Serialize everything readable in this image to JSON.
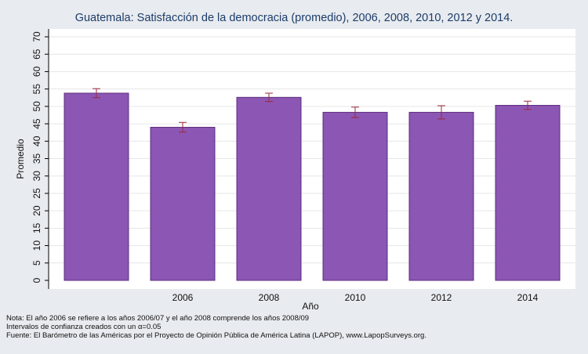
{
  "title": "Guatemala: Satisfacción de la democracia (promedio), 2006, 2008, 2010, 2012 y 2014.",
  "notes": {
    "line1": "Nota: El año 2006 se refiere a los años 2006/07 y el año 2008 comprende los años 2008/09",
    "line2": "Intervalos de confianza creados con un α=0.05",
    "line3": "Fuente: El Barómetro de las Américas por el Proyecto de Opinión Pública de América Latina (LAPOP), www.LapopSurveys.org."
  },
  "chart_data": {
    "type": "bar",
    "title": "Guatemala: Satisfacción de la democracia (promedio), 2006, 2008, 2010, 2012 y 2014.",
    "xlabel": "Año",
    "ylabel": "Promedio",
    "ylim": [
      0,
      70
    ],
    "yticks": [
      0,
      5,
      10,
      15,
      20,
      25,
      30,
      35,
      40,
      45,
      50,
      55,
      60,
      65,
      70
    ],
    "grid": true,
    "categories": [
      "",
      "2006",
      "2008",
      "2010",
      "2012",
      "2014"
    ],
    "values": [
      53.8,
      44.0,
      52.6,
      48.3,
      48.3,
      50.3
    ],
    "ci_low": [
      52.5,
      42.6,
      51.4,
      46.8,
      46.4,
      49.1
    ],
    "ci_high": [
      55.1,
      45.4,
      53.8,
      49.8,
      50.2,
      51.5
    ],
    "colors": {
      "bar_fill": "#8c56b4",
      "bar_stroke": "#5c2c7c",
      "error_bar": "#9a2a3a",
      "plot_bg": "#ffffff",
      "page_bg": "#e8ebef",
      "grid": "#e6e6e6"
    }
  }
}
